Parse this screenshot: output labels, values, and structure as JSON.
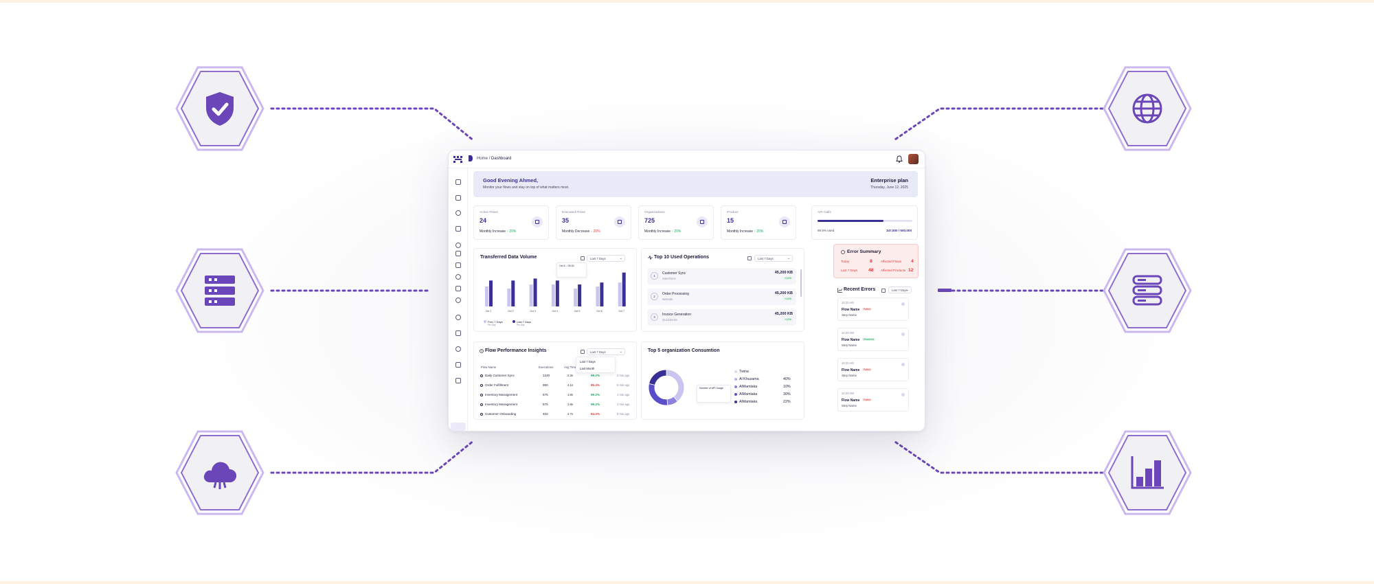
{
  "colors": {
    "accent": "#3a2f95",
    "hex_outline": "#8f6dd0",
    "connector": "#6b46b8",
    "success": "#22a563",
    "danger": "#e03b3b"
  },
  "feature_icons": [
    "shield-check-icon",
    "server-rack-icon",
    "cloud-icon",
    "globe-icon",
    "database-icon",
    "bar-chart-icon"
  ],
  "header": {
    "breadcrumb_home": "Home",
    "breadcrumb_sep": "/",
    "breadcrumb_current": "Dashboard"
  },
  "welcome": {
    "greeting": "Good Evening Ahmed,",
    "subtitle": "Monitor your flows and stay on top of what matters most.",
    "plan": "Enterprise plan",
    "date": "Thursday, June 12, 2025"
  },
  "stats": [
    {
      "label": "Active Flows",
      "value": "24",
      "trend_label": "Monthly Increase",
      "trend_arrow": "↑",
      "trend_value": "20%",
      "direction": "up",
      "icon": "play-icon"
    },
    {
      "label": "Executed Flows",
      "value": "35",
      "trend_label": "Monthly Decrease",
      "trend_arrow": "↓",
      "trend_value": "20%",
      "direction": "down",
      "icon": "check-circle-icon"
    },
    {
      "label": "Organizations",
      "value": "725",
      "trend_label": "Monthly Increase",
      "trend_arrow": "↑",
      "trend_value": "20%",
      "direction": "up",
      "icon": "building-icon"
    },
    {
      "label": "Product",
      "value": "15",
      "trend_label": "Monthly Increase",
      "trend_arrow": "↑",
      "trend_value": "20%",
      "direction": "up",
      "icon": "box-icon"
    }
  ],
  "api_calls": {
    "label": "API Calls",
    "used_text": "69.5% used",
    "count_text": "347,500 / 500,000",
    "used_fraction": 0.695
  },
  "transferred": {
    "title": "Transferred Data Volume",
    "filter": "Last 7 Days",
    "legend_prev": "Prev 7 Days",
    "legend_prev_sub": "Per Day",
    "legend_last": "Last 7 Days",
    "legend_last_sub": "Per Day",
    "tooltip_date": "Oct 5 – 05:34"
  },
  "chart_data": {
    "type": "bar",
    "categories": [
      "Oct 1",
      "Oct 2",
      "Oct 3",
      "Oct 4",
      "Oct 5",
      "Oct 6",
      "Oct 7"
    ],
    "series": [
      {
        "name": "Prev 7 Days",
        "values": [
          50,
          45,
          55,
          55,
          45,
          50,
          60
        ]
      },
      {
        "name": "Last 7 Days",
        "values": [
          65,
          65,
          70,
          65,
          55,
          60,
          85
        ]
      }
    ],
    "ylim": [
      0,
      100
    ]
  },
  "top_ops": {
    "title": "Top 10 Used Operations",
    "filter": "Last 7 Days",
    "rows": [
      {
        "rank": "1",
        "name": "Customer Sync",
        "source": "Salesforce",
        "size": "45,200 KB",
        "pct": "+12%"
      },
      {
        "rank": "2",
        "name": "Order Processing",
        "source": "Netsuite",
        "size": "45,200 KB",
        "pct": "+12%"
      },
      {
        "rank": "3",
        "name": "Invoice Generation",
        "source": "Quickbooks",
        "size": "45,200 KB",
        "pct": "+12%"
      }
    ]
  },
  "error_summary": {
    "title": "Error Summary",
    "today_label": "Today",
    "today_value": "8",
    "week_label": "Last 7 Days",
    "week_value": "48",
    "flows_label": "Affected Flows",
    "flows_value": "4",
    "products_label": "Affected Products",
    "products_value": "12"
  },
  "recent_errors": {
    "title": "Recent Errors",
    "filter": "Last 7 Days",
    "items": [
      {
        "time": "10:23 AM",
        "flow": "Flow Name",
        "step": "Step Name",
        "status": "Failed",
        "kind": "failed"
      },
      {
        "time": "10:23 AM",
        "flow": "Flow Name",
        "step": "Step Name",
        "status": "Resolved",
        "kind": "resolved"
      },
      {
        "time": "10:23 AM",
        "flow": "Flow Name",
        "step": "Step Name",
        "status": "Failed",
        "kind": "failed"
      },
      {
        "time": "10:23 AM",
        "flow": "Flow Name",
        "step": "Step Name",
        "status": "Failed",
        "kind": "failed"
      }
    ]
  },
  "flow_perf": {
    "title": "Flow Performance Insights",
    "filter": "Last 7 Days",
    "menu": [
      "Last 7 Days",
      "Last Month"
    ],
    "columns": [
      "Flow Name",
      "Executions",
      "Avg Time"
    ],
    "rows": [
      {
        "name": "Daily Customer Sync",
        "exec": "1240",
        "avg": "2.3s",
        "rate": "98.2%",
        "rate_kind": "up",
        "ago": "2 min ago"
      },
      {
        "name": "Order Fulfillment",
        "exec": "860",
        "avg": "4.1s",
        "rate": "85.4%",
        "rate_kind": "down",
        "ago": "5 min ago"
      },
      {
        "name": "Inventory Management",
        "exec": "675",
        "avg": "1.8s",
        "rate": "99.2%",
        "rate_kind": "up",
        "ago": "1 min ago"
      },
      {
        "name": "Inventory Management",
        "exec": "675",
        "avg": "1.8s",
        "rate": "99.2%",
        "rate_kind": "up",
        "ago": "1 min ago"
      },
      {
        "name": "Customer Onboarding",
        "exec": "402",
        "avg": "4.7s",
        "rate": "84.3%",
        "rate_kind": "down",
        "ago": "8 min ago"
      }
    ]
  },
  "top_orgs": {
    "title": "Top 5 organization Consumtion",
    "center_label": "Number of API Usage",
    "legend": [
      {
        "name": "Twina",
        "pct": "",
        "color": "#d9d6f0"
      },
      {
        "name": "Al Khuzama",
        "pct": "40%",
        "color": "#b8b2ea"
      },
      {
        "name": "AlMamlaka",
        "pct": "10%",
        "color": "#8c82de"
      },
      {
        "name": "AlMamlaka",
        "pct": "30%",
        "color": "#5a4ec8"
      },
      {
        "name": "AlMamlaka",
        "pct": "22%",
        "color": "#3a2f95"
      }
    ]
  }
}
